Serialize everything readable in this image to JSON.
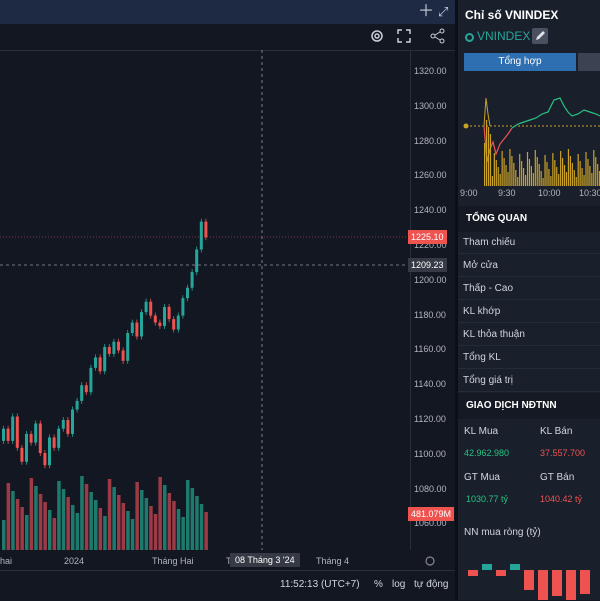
{
  "toolbar": {
    "add_icon": "plus-icon",
    "expand_icon": "expand-icon",
    "settings_icon": "gear-icon",
    "fullscreen_icon": "fullscreen-icon",
    "share_icon": "share-icon"
  },
  "chart": {
    "y_ticks": [
      "1320.00",
      "1300.00",
      "1280.00",
      "1260.00",
      "1240.00",
      "1220.00",
      "1200.00",
      "1180.00",
      "1160.00",
      "1140.00",
      "1120.00",
      "1100.00",
      "1080.00",
      "1060.00"
    ],
    "x_ticks": [
      "hai",
      "2024",
      "Tháng Hai",
      "T",
      "Tháng 4"
    ],
    "last_price": "1225.10",
    "crosshair_price": "1209.23",
    "volume_label": "481.079M",
    "crosshair_date": "08 Tháng 3 '24",
    "colors": {
      "up": "#26a69a",
      "down": "#ef5350",
      "up_vol": "#1f7a6e",
      "down_vol": "#9c3b46"
    }
  },
  "bottombar": {
    "time": "11:52:13 (UTC+7)",
    "percent": "%",
    "log": "log",
    "auto": "tự động"
  },
  "side": {
    "title": "Chỉ số VNINDEX",
    "ticker": "VNINDEX",
    "tab_active": "Tổng hợp",
    "mini_x_ticks": [
      "9:00",
      "9:30",
      "10:00",
      "10:30"
    ],
    "overview_title": "TỔNG QUAN",
    "overview_rows": [
      "Tham chiếu",
      "Mở cửa",
      "Thấp - Cao",
      "KL khớp",
      "KL thỏa thuận",
      "Tổng KL",
      "Tổng giá trị"
    ],
    "foreign_title": "GIAO DỊCH NĐTNN",
    "kl_mua_label": "KL Mua",
    "kl_ban_label": "KL Bán",
    "kl_mua_value": "42.962.980",
    "kl_ban_value": "37.557.700",
    "gt_mua_label": "GT Mua",
    "gt_ban_label": "GT Bán",
    "gt_mua_value": "1030.77 tỷ",
    "gt_ban_value": "1040.42 tỷ",
    "net_title": "NN mua ròng (tỷ)"
  }
}
